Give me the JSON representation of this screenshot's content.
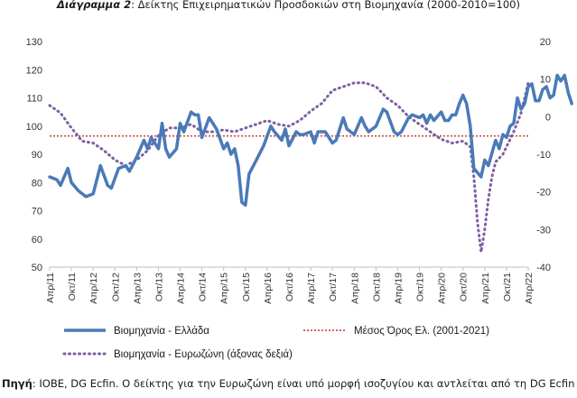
{
  "title": {
    "prefix": "Διάγραμμα 2",
    "text": ": Δείκτης Επιχειρηματικών Προσδοκιών στη Βιομηχανία (2000-2010=100)"
  },
  "source": {
    "label": "Πηγή",
    "text": ": ΙΟΒΕ, DG Ecfin. Ο δείκτης για την Ευρωζώνη είναι υπό μορφή ισοζυγίου και αντλείται από τη DG Ecfin"
  },
  "colors": {
    "greece": "#4a7ab8",
    "eurozone": "#7d5fa3",
    "average": "#c0392b",
    "axis": "#bfbfbf"
  },
  "chart_data": {
    "type": "line",
    "x_start": "2011-04",
    "x_end": "2022-04",
    "x_ticks": [
      "Απρ/11",
      "Οκτ/11",
      "Απρ/12",
      "Οκτ/12",
      "Απρ/13",
      "Οκτ/13",
      "Απρ/14",
      "Οκτ/14",
      "Απρ/15",
      "Οκτ/15",
      "Απρ/16",
      "Οκτ/16",
      "Απρ/17",
      "Οκτ/17",
      "Απρ/18",
      "Οκτ/18",
      "Απρ/19",
      "Οκτ/19",
      "Απρ/20",
      "Οκτ/20",
      "Απρ/21",
      "Οκτ/21",
      "Απρ/22"
    ],
    "y_left": {
      "min": 50,
      "max": 130,
      "step": 10,
      "ticks": [
        "50",
        "60",
        "70",
        "80",
        "90",
        "100",
        "110",
        "120",
        "130"
      ]
    },
    "y_right": {
      "min": -40,
      "max": 20,
      "step": 10,
      "ticks": [
        "-40",
        "-30",
        "-20",
        "-10",
        "0",
        "10",
        "20"
      ]
    },
    "series": [
      {
        "name": "Βιομηχανία  - Ελλάδα",
        "axis": "left",
        "style": "solid",
        "anchors": [
          [
            0,
            82
          ],
          [
            2,
            81
          ],
          [
            3,
            79
          ],
          [
            5,
            85
          ],
          [
            6,
            80
          ],
          [
            8,
            77
          ],
          [
            10,
            75
          ],
          [
            12,
            76
          ],
          [
            14,
            86
          ],
          [
            16,
            79
          ],
          [
            17,
            78
          ],
          [
            19,
            85
          ],
          [
            21,
            86
          ],
          [
            22,
            84
          ],
          [
            24,
            89
          ],
          [
            26,
            95
          ],
          [
            27,
            92
          ],
          [
            28,
            96
          ],
          [
            30,
            92
          ],
          [
            31,
            101
          ],
          [
            32,
            92
          ],
          [
            33,
            89
          ],
          [
            35,
            92
          ],
          [
            36,
            101
          ],
          [
            37,
            98
          ],
          [
            39,
            105
          ],
          [
            40,
            104
          ],
          [
            41,
            104
          ],
          [
            42,
            96
          ],
          [
            44,
            103
          ],
          [
            45,
            101
          ],
          [
            46,
            99
          ],
          [
            48,
            92
          ],
          [
            49,
            94
          ],
          [
            50,
            90
          ],
          [
            51,
            92
          ],
          [
            52,
            86
          ],
          [
            53,
            73
          ],
          [
            54,
            72
          ],
          [
            55,
            83
          ],
          [
            57,
            88
          ],
          [
            59,
            93
          ],
          [
            61,
            100
          ],
          [
            62,
            98
          ],
          [
            64,
            95
          ],
          [
            65,
            99
          ],
          [
            66,
            93
          ],
          [
            68,
            98
          ],
          [
            69,
            97
          ],
          [
            70,
            97
          ],
          [
            72,
            98
          ],
          [
            73,
            94
          ],
          [
            74,
            98
          ],
          [
            76,
            98
          ],
          [
            78,
            94
          ],
          [
            79,
            95
          ],
          [
            81,
            103
          ],
          [
            82,
            99
          ],
          [
            84,
            97
          ],
          [
            86,
            103
          ],
          [
            87,
            100
          ],
          [
            88,
            98
          ],
          [
            90,
            100
          ],
          [
            92,
            106
          ],
          [
            93,
            105
          ],
          [
            95,
            98
          ],
          [
            96,
            97
          ],
          [
            97,
            98
          ],
          [
            99,
            103
          ],
          [
            100,
            104
          ],
          [
            102,
            103
          ],
          [
            103,
            104
          ],
          [
            104,
            101
          ],
          [
            105,
            104
          ],
          [
            106,
            102
          ],
          [
            108,
            105
          ],
          [
            109,
            102
          ],
          [
            110,
            102
          ],
          [
            111,
            104
          ],
          [
            112,
            104
          ],
          [
            113,
            108
          ],
          [
            114,
            111
          ],
          [
            115,
            108
          ],
          [
            116,
            100
          ],
          [
            117,
            85
          ],
          [
            119,
            82
          ],
          [
            120,
            88
          ],
          [
            121,
            86
          ],
          [
            123,
            95
          ],
          [
            124,
            92
          ],
          [
            125,
            97
          ],
          [
            126,
            96
          ],
          [
            127,
            100
          ],
          [
            128,
            101
          ],
          [
            129,
            110
          ],
          [
            130,
            106
          ],
          [
            131,
            108
          ],
          [
            132,
            114
          ],
          [
            133,
            115
          ],
          [
            134,
            109
          ],
          [
            135,
            109
          ],
          [
            136,
            113
          ],
          [
            137,
            114
          ],
          [
            138,
            110
          ],
          [
            139,
            111
          ],
          [
            140,
            118
          ],
          [
            141,
            116
          ],
          [
            142,
            118
          ],
          [
            143,
            112
          ],
          [
            144,
            108
          ]
        ]
      },
      {
        "name": "Μέσος Όρος Ελ. (2001-2021)",
        "axis": "left",
        "style": "dotted",
        "value": 96.5
      },
      {
        "name": "Βιομηχανία - Ευρωζώνη (άξονας δεξιά)",
        "axis": "right",
        "style": "dotted",
        "anchors": [
          [
            0,
            3
          ],
          [
            3,
            1
          ],
          [
            6,
            -3
          ],
          [
            9,
            -6.5
          ],
          [
            12,
            -7
          ],
          [
            15,
            -9
          ],
          [
            18,
            -11.5
          ],
          [
            21,
            -13
          ],
          [
            24,
            -11.5
          ],
          [
            27,
            -9
          ],
          [
            30,
            -5
          ],
          [
            33,
            -3
          ],
          [
            36,
            -3
          ],
          [
            39,
            -2
          ],
          [
            42,
            -4
          ],
          [
            45,
            -4
          ],
          [
            48,
            -3.5
          ],
          [
            51,
            -4
          ],
          [
            54,
            -3
          ],
          [
            57,
            -2
          ],
          [
            60,
            -1
          ],
          [
            63,
            -2
          ],
          [
            66,
            -2.5
          ],
          [
            69,
            -1
          ],
          [
            72,
            1.5
          ],
          [
            75,
            3.5
          ],
          [
            78,
            7
          ],
          [
            81,
            8
          ],
          [
            84,
            9
          ],
          [
            87,
            9
          ],
          [
            90,
            8
          ],
          [
            93,
            5
          ],
          [
            96,
            3
          ],
          [
            99,
            0
          ],
          [
            102,
            -2
          ],
          [
            105,
            -4
          ],
          [
            108,
            -6
          ],
          [
            111,
            -7
          ],
          [
            114,
            -6.5
          ],
          [
            116,
            -8
          ],
          [
            117,
            -16
          ],
          [
            118,
            -28
          ],
          [
            119,
            -36
          ],
          [
            120,
            -30
          ],
          [
            121,
            -22
          ],
          [
            122,
            -16
          ],
          [
            123,
            -12
          ],
          [
            124,
            -11
          ],
          [
            125,
            -10
          ],
          [
            126,
            -8
          ],
          [
            128,
            -4
          ],
          [
            130,
            1
          ],
          [
            132,
            9
          ],
          [
            134,
            12
          ],
          [
            136,
            14
          ],
          [
            138,
            14
          ],
          [
            140,
            13.5
          ],
          [
            142,
            13
          ],
          [
            143,
            9
          ],
          [
            144,
            8
          ]
        ]
      }
    ]
  }
}
